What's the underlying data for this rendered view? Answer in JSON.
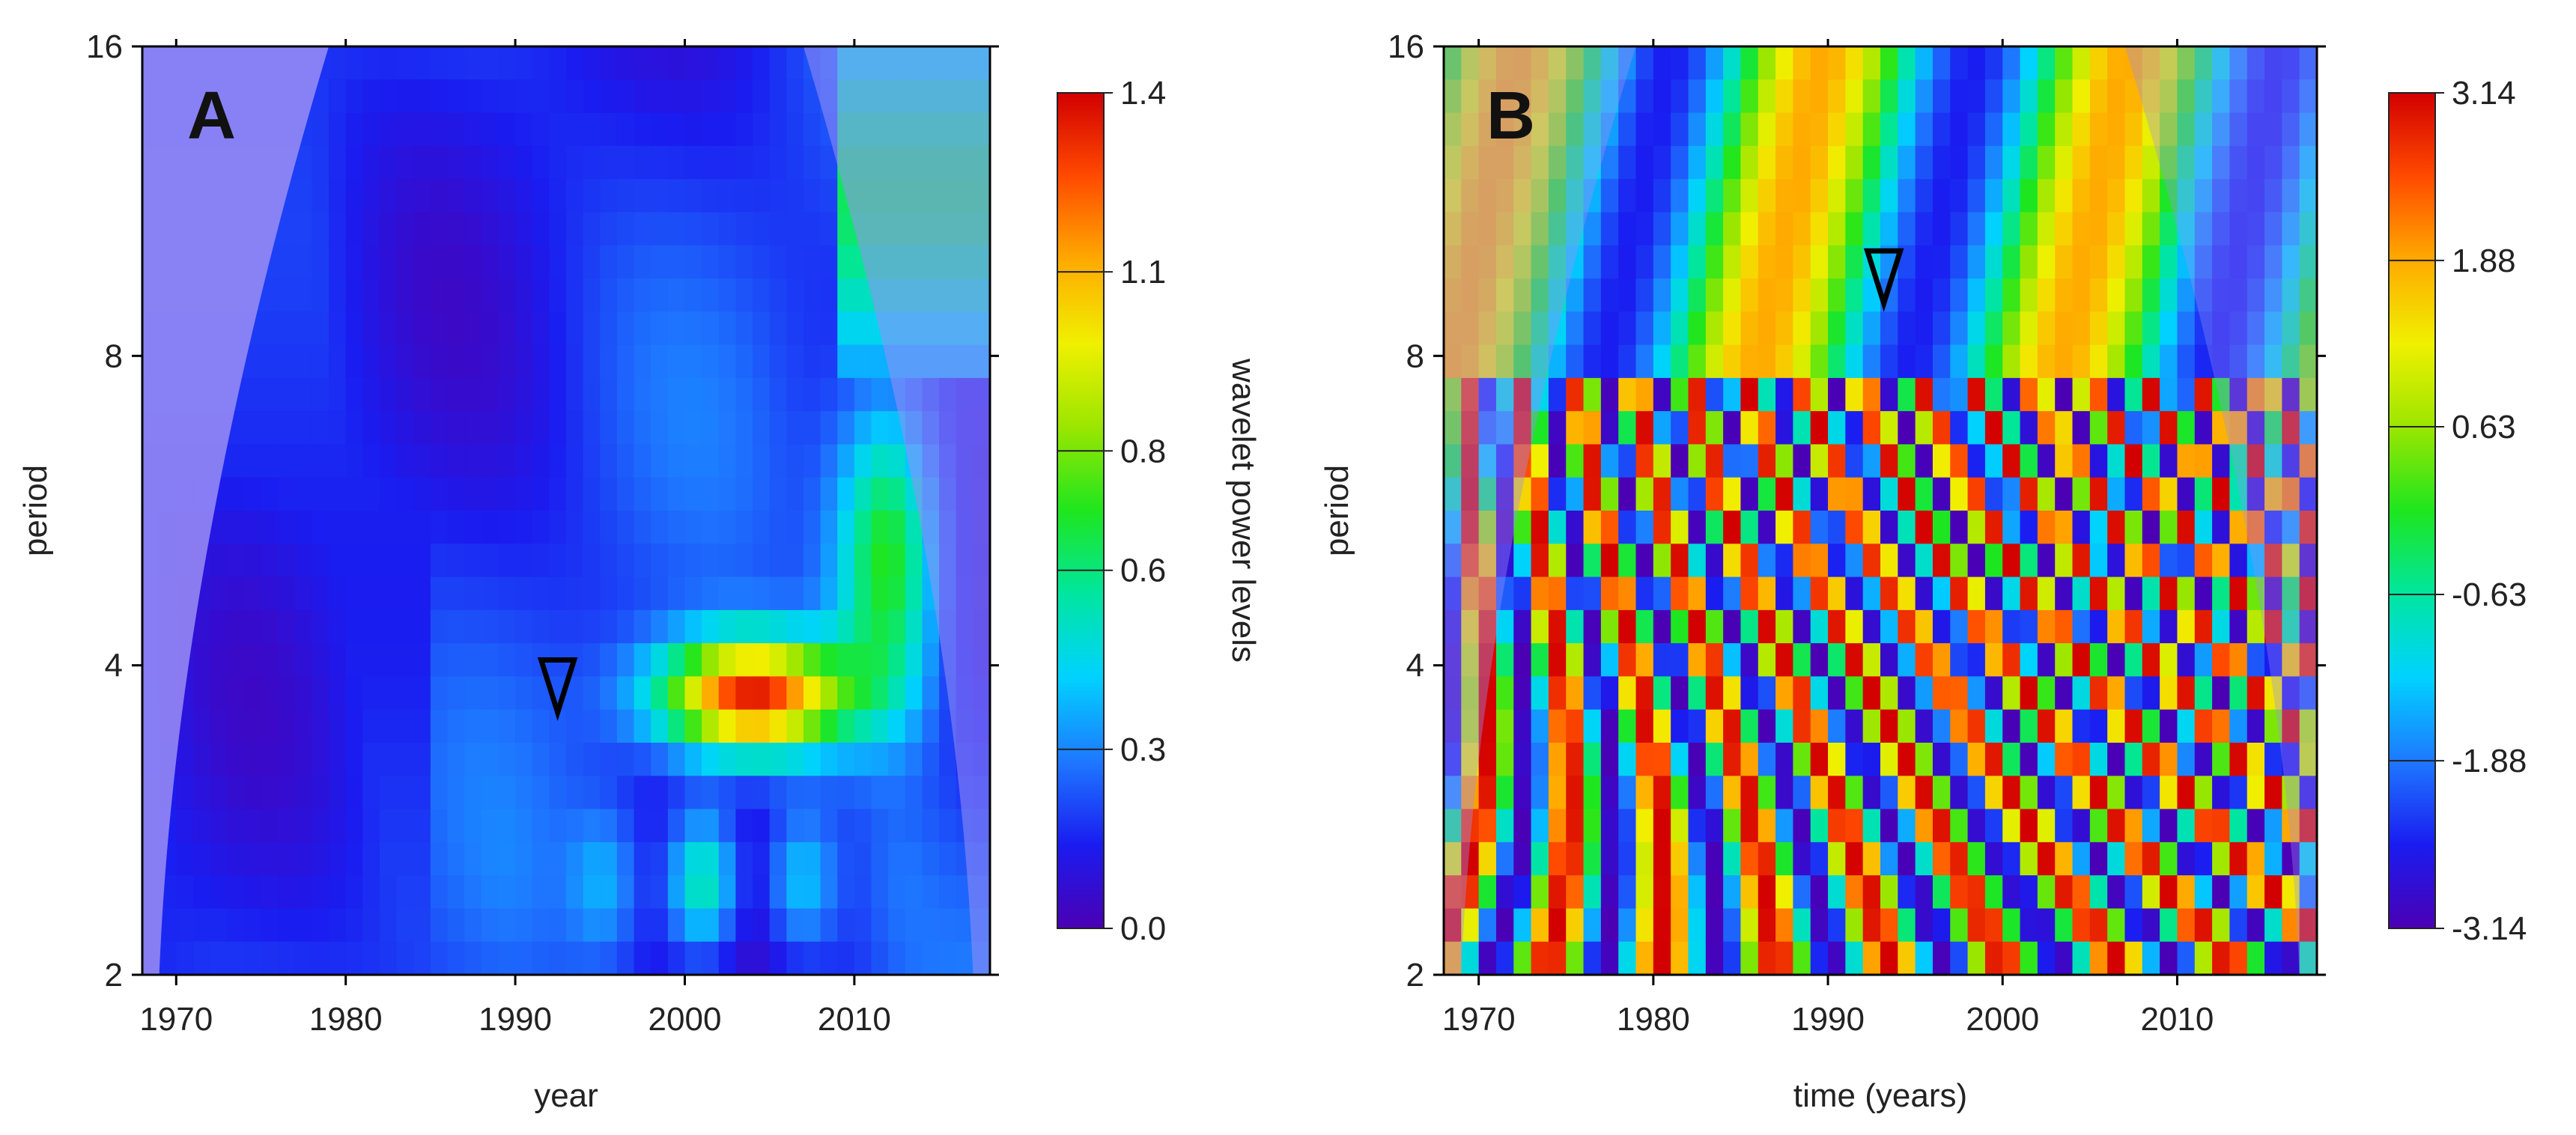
{
  "chart_data": [
    {
      "type": "heatmap",
      "panel": "A",
      "title": "",
      "xlabel": "year",
      "ylabel": "period",
      "xlim": [
        1968,
        2018
      ],
      "ylim": [
        2,
        16
      ],
      "y_scale": "log2",
      "x_ticks": [
        "1970",
        "1980",
        "1990",
        "2000",
        "2010"
      ],
      "y_ticks": [
        "2",
        "4",
        "8",
        "16"
      ],
      "colorbar": {
        "label": "wavelet power levels",
        "ticks": [
          "0.0",
          "0.3",
          "0.6",
          "0.8",
          "1.1",
          "1.4"
        ],
        "range": [
          0,
          1.4
        ]
      },
      "annotations": [
        {
          "type": "triangle-marker",
          "year": 1992.5,
          "period": 3.6
        }
      ]
    },
    {
      "type": "heatmap",
      "panel": "B",
      "title": "",
      "xlabel": "time (years)",
      "ylabel": "period",
      "xlim": [
        1968,
        2018
      ],
      "ylim": [
        2,
        16
      ],
      "y_scale": "log2",
      "x_ticks": [
        "1970",
        "1980",
        "1990",
        "2000",
        "2010"
      ],
      "y_ticks": [
        "2",
        "4",
        "8",
        "16"
      ],
      "colorbar": {
        "label": "",
        "ticks": [
          "3.14",
          "1.88",
          "0.63",
          "-0.63",
          "-1.88",
          "-3.14"
        ],
        "range": [
          -3.14,
          3.14
        ]
      },
      "annotations": [
        {
          "type": "triangle-marker",
          "year": 1993.2,
          "period": 9.0
        }
      ]
    }
  ],
  "colors": {
    "scale": [
      "#4b00b4",
      "#1a1cf0",
      "#1e78ff",
      "#00d2ff",
      "#00e6a0",
      "#1ee61e",
      "#9be600",
      "#f0f000",
      "#ffaa00",
      "#ff4a00",
      "#d20000"
    ],
    "outside_cone": "#9b8ef5",
    "contour": "#ffffff",
    "marker": "#000000"
  }
}
